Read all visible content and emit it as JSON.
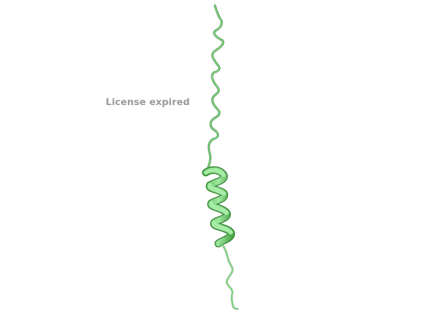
{
  "viewer": {
    "overlay_text": "License expired",
    "background_color": "#ffffff",
    "overlay_text_color": "#9a9a9a"
  },
  "molecule": {
    "representation": "cartoon",
    "secondary_structure": [
      "coil",
      "helix",
      "coil"
    ],
    "color": "#7fdc7f",
    "shadow_color": "#3c8a3c",
    "highlight_color": "#b6f0b6"
  }
}
